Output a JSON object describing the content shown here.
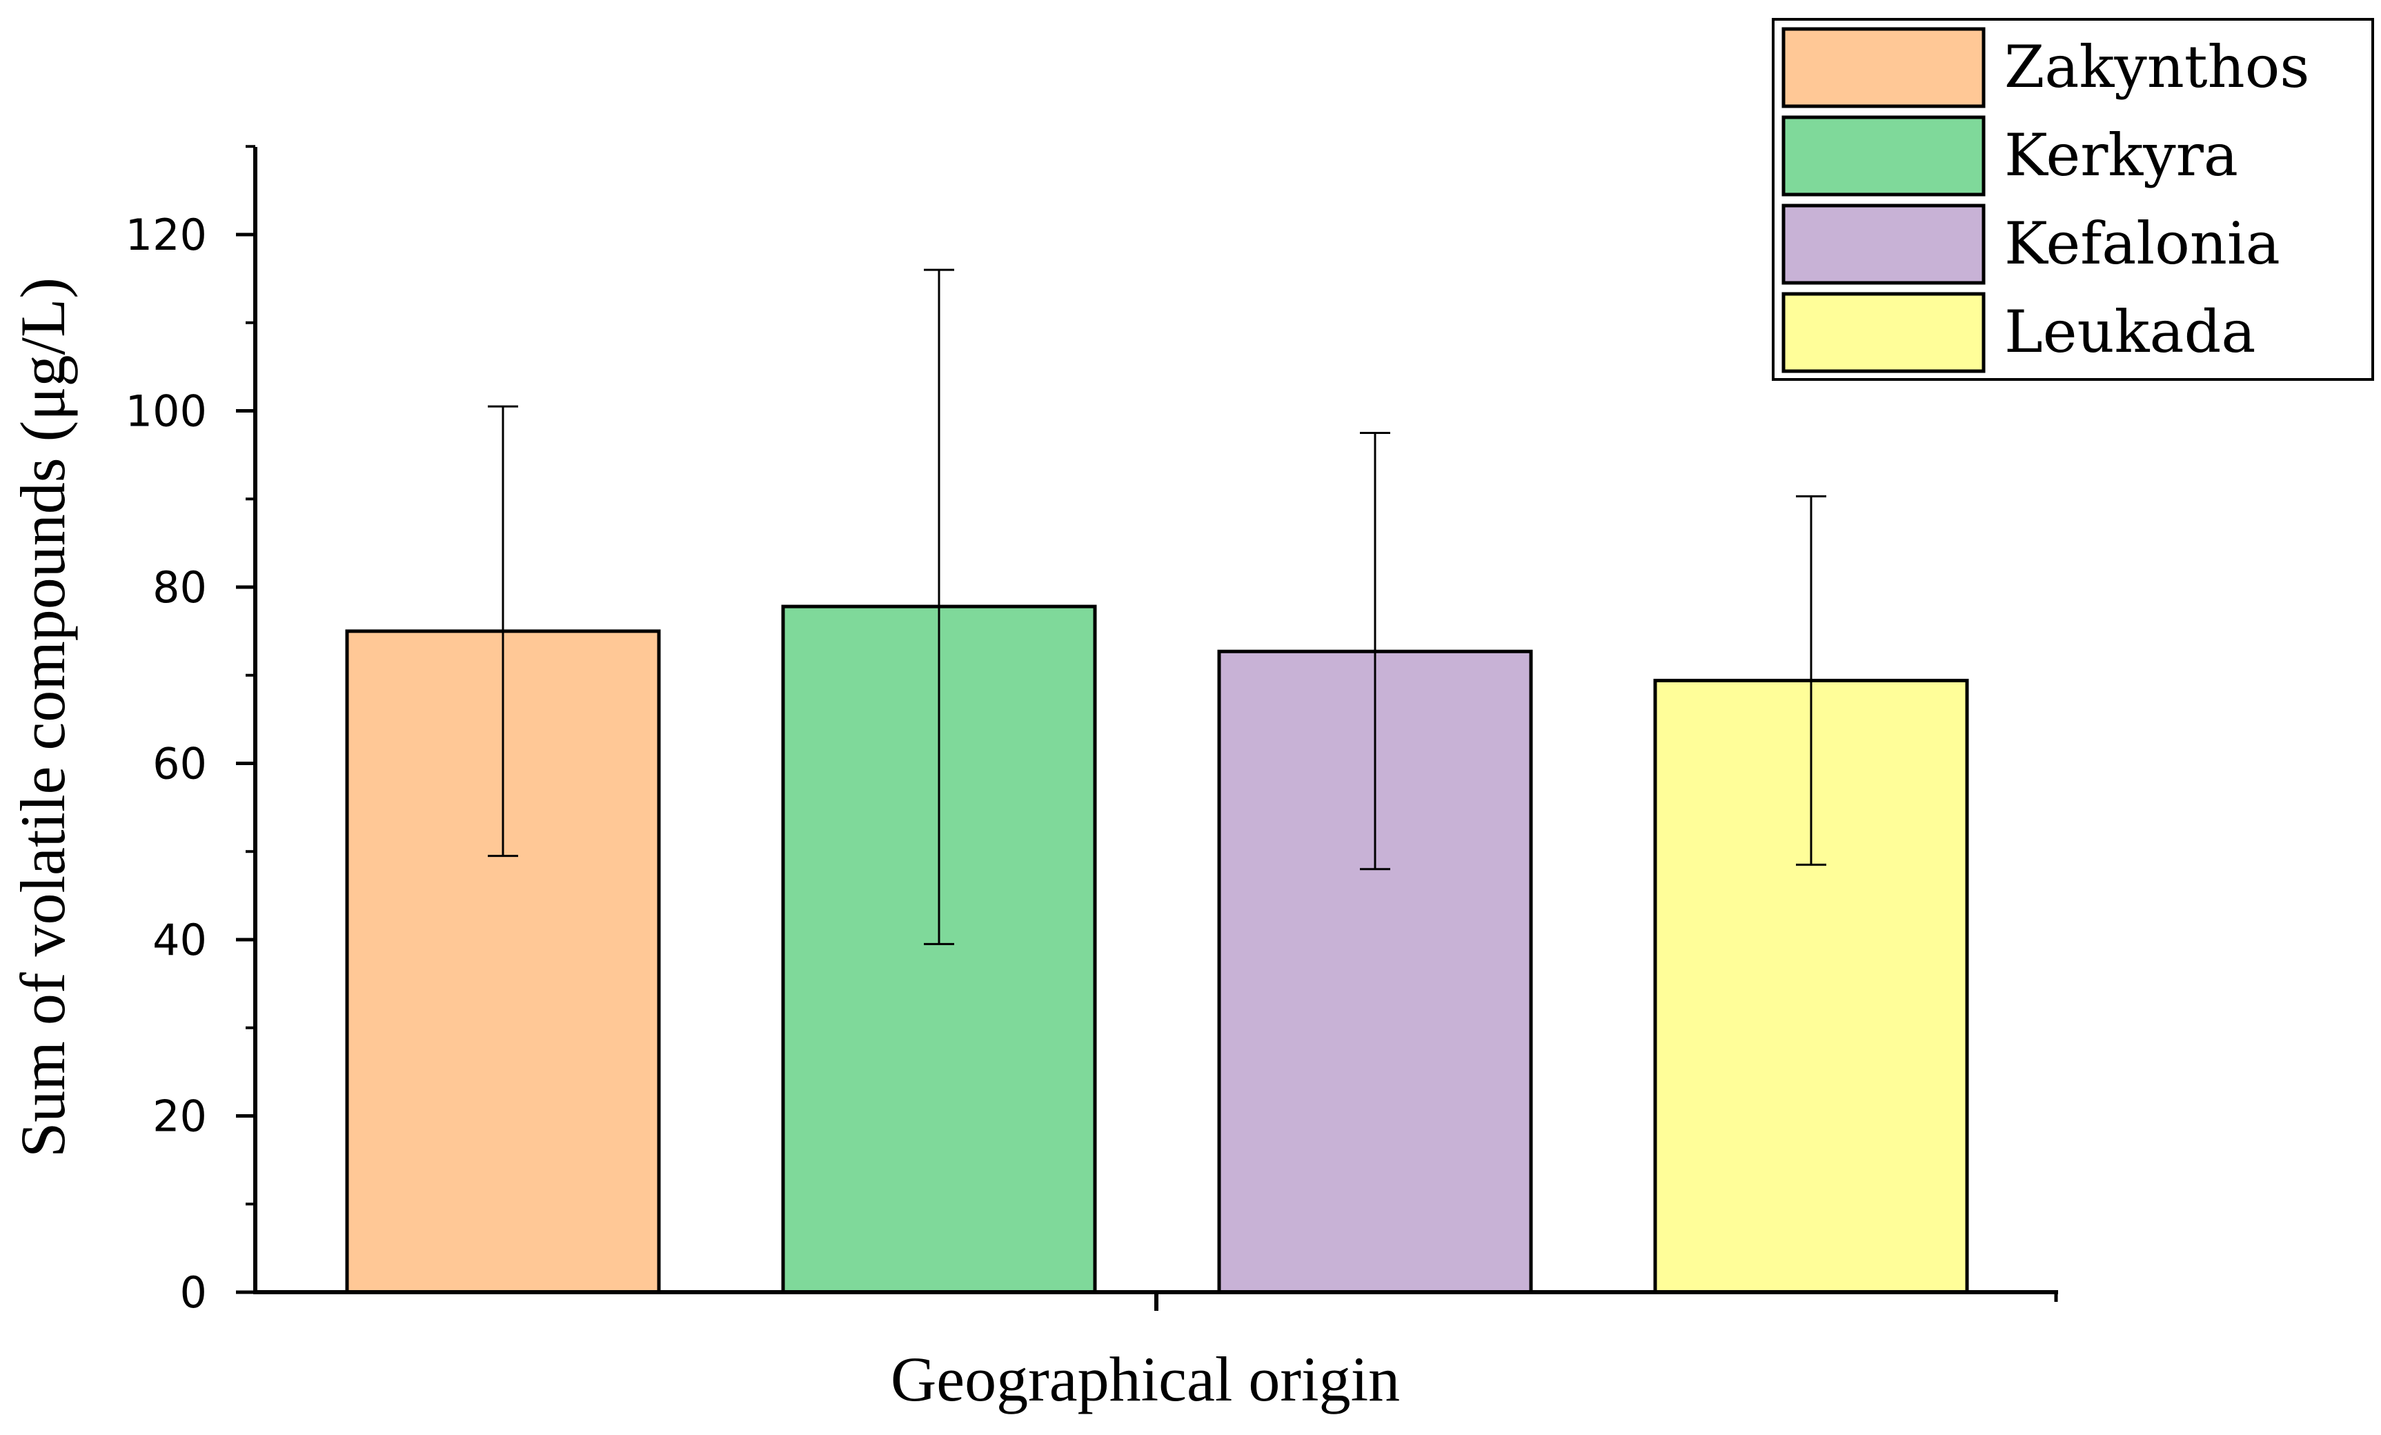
{
  "chart_data": {
    "type": "bar",
    "xlabel": "Geographical origin",
    "ylabel": "Sum of volatile compounds (μg/L)",
    "ylim": [
      0,
      130
    ],
    "yticks": [
      0,
      20,
      40,
      60,
      80,
      100,
      120
    ],
    "legend_position": "top-right",
    "grid": false,
    "series": [
      {
        "name": "Zakynthos",
        "value": 75.0,
        "error_low": 49.5,
        "error_high": 100.5,
        "color": "#FFC896"
      },
      {
        "name": "Kerkyra",
        "value": 77.8,
        "error_low": 39.5,
        "error_high": 116.0,
        "color": "#7FD99A"
      },
      {
        "name": "Kefalonia",
        "value": 72.7,
        "error_low": 48.0,
        "error_high": 97.5,
        "color": "#C8B2D6"
      },
      {
        "name": "Leukada",
        "value": 69.4,
        "error_low": 48.5,
        "error_high": 90.3,
        "color": "#FFFE99"
      }
    ]
  }
}
